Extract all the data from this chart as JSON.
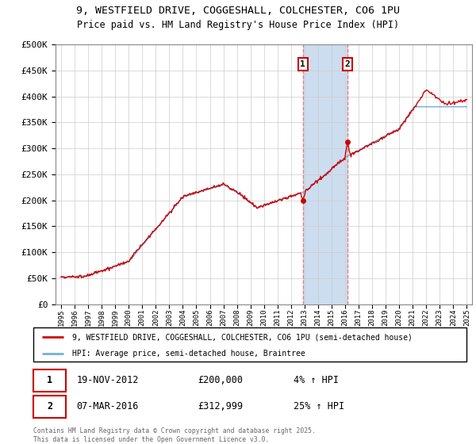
{
  "title_line1": "9, WESTFIELD DRIVE, COGGESHALL, COLCHESTER, CO6 1PU",
  "title_line2": "Price paid vs. HM Land Registry's House Price Index (HPI)",
  "legend_label1": "9, WESTFIELD DRIVE, COGGESHALL, COLCHESTER, CO6 1PU (semi-detached house)",
  "legend_label2": "HPI: Average price, semi-detached house, Braintree",
  "annotation1_date": "19-NOV-2012",
  "annotation1_price": "£200,000",
  "annotation1_hpi": "4% ↑ HPI",
  "annotation2_date": "07-MAR-2016",
  "annotation2_price": "£312,999",
  "annotation2_hpi": "25% ↑ HPI",
  "footnote": "Contains HM Land Registry data © Crown copyright and database right 2025.\nThis data is licensed under the Open Government Licence v3.0.",
  "line1_color": "#cc0000",
  "line2_color": "#7aaed6",
  "shade_color": "#ccddf0",
  "vline_color": "#e87878",
  "box_color": "#cc0000",
  "ylim": [
    0,
    500000
  ],
  "yticks": [
    0,
    50000,
    100000,
    150000,
    200000,
    250000,
    300000,
    350000,
    400000,
    450000,
    500000
  ],
  "year_start": 1995,
  "year_end": 2025,
  "event1_year": 2012.88,
  "event2_year": 2016.17,
  "event1_price": 200000,
  "event2_price": 312999
}
